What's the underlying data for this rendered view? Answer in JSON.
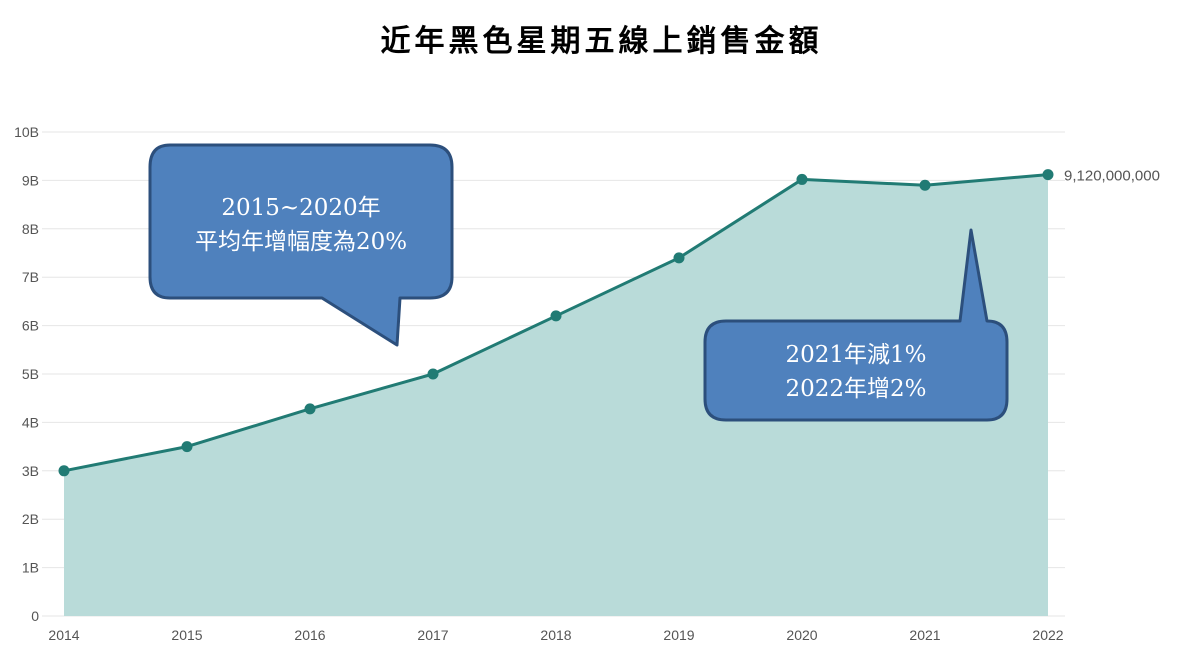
{
  "title": "近年黑色星期五線上銷售金額",
  "chart_data": {
    "type": "area",
    "x": [
      "2014",
      "2015",
      "2016",
      "2017",
      "2018",
      "2019",
      "2020",
      "2021",
      "2022"
    ],
    "series": [
      {
        "values": [
          3000000000,
          3500000000,
          4280000000,
          5000000000,
          6200000000,
          7400000000,
          9020000000,
          8900000000,
          9120000000
        ]
      }
    ],
    "ylim": [
      0,
      10000000000
    ],
    "yticks": [
      {
        "value": 0,
        "label": "0"
      },
      {
        "value": 1000000000,
        "label": "1B"
      },
      {
        "value": 2000000000,
        "label": "2B"
      },
      {
        "value": 3000000000,
        "label": "3B"
      },
      {
        "value": 4000000000,
        "label": "4B"
      },
      {
        "value": 5000000000,
        "label": "5B"
      },
      {
        "value": 6000000000,
        "label": "6B"
      },
      {
        "value": 7000000000,
        "label": "7B"
      },
      {
        "value": 8000000000,
        "label": "8B"
      },
      {
        "value": 9000000000,
        "label": "9B"
      },
      {
        "value": 10000000000,
        "label": "10B"
      }
    ],
    "end_label": "9,120,000,000",
    "grid": true,
    "colors": {
      "line": "#217b74",
      "fill": "#b9dbd9",
      "point": "#217b74",
      "grid": "#e6e6e6"
    },
    "annotations": [
      {
        "lines": [
          "2015~2020年",
          "平均年增幅度為20%"
        ],
        "bg": "#4f81bd",
        "border": "#2c4f7c"
      },
      {
        "lines": [
          "2021年減1%",
          "2022年增2%"
        ],
        "bg": "#4f81bd",
        "border": "#2c4f7c"
      }
    ]
  }
}
